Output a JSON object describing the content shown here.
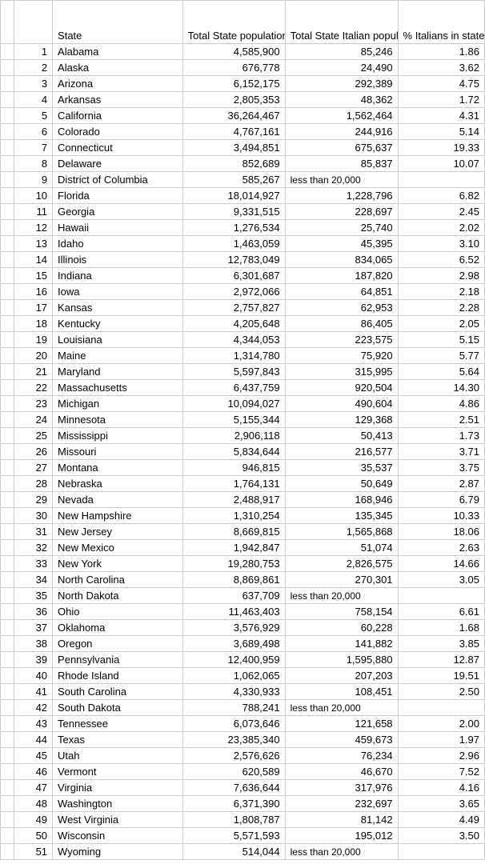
{
  "headers": {
    "state": "State",
    "total_pop": "Total State population",
    "italian_pop": "Total State Italian population",
    "pct": "% Italians in state"
  },
  "less_than_text": "less than 20,000",
  "rows": [
    {
      "n": "1",
      "state": "Alabama",
      "pop": "4,585,900",
      "ital": "85,246",
      "pct": "1.86"
    },
    {
      "n": "2",
      "state": "Alaska",
      "pop": "676,778",
      "ital": "24,490",
      "pct": "3.62"
    },
    {
      "n": "3",
      "state": "Arizona",
      "pop": "6,152,175",
      "ital": "292,389",
      "pct": "4.75"
    },
    {
      "n": "4",
      "state": "Arkansas",
      "pop": "2,805,353",
      "ital": "48,362",
      "pct": "1.72"
    },
    {
      "n": "5",
      "state": "California",
      "pop": "36,264,467",
      "ital": "1,562,464",
      "pct": "4.31"
    },
    {
      "n": "6",
      "state": "Colorado",
      "pop": "4,767,161",
      "ital": "244,916",
      "pct": "5.14"
    },
    {
      "n": "7",
      "state": "Connecticut",
      "pop": "3,494,851",
      "ital": "675,637",
      "pct": "19.33"
    },
    {
      "n": "8",
      "state": "Delaware",
      "pop": "852,689",
      "ital": "85,837",
      "pct": "10.07"
    },
    {
      "n": "9",
      "state": "District of Columbia",
      "pop": "585,267",
      "ital": "__LT__",
      "pct": ""
    },
    {
      "n": "10",
      "state": "Florida",
      "pop": "18,014,927",
      "ital": "1,228,796",
      "pct": "6.82"
    },
    {
      "n": "11",
      "state": "Georgia",
      "pop": "9,331,515",
      "ital": "228,697",
      "pct": "2.45"
    },
    {
      "n": "12",
      "state": "Hawaii",
      "pop": "1,276,534",
      "ital": "25,740",
      "pct": "2.02"
    },
    {
      "n": "13",
      "state": "Idaho",
      "pop": "1,463,059",
      "ital": "45,395",
      "pct": "3.10"
    },
    {
      "n": "14",
      "state": "Illinois",
      "pop": "12,783,049",
      "ital": "834,065",
      "pct": "6.52"
    },
    {
      "n": "15",
      "state": "Indiana",
      "pop": "6,301,687",
      "ital": "187,820",
      "pct": "2.98"
    },
    {
      "n": "16",
      "state": "Iowa",
      "pop": "2,972,066",
      "ital": "64,851",
      "pct": "2.18"
    },
    {
      "n": "17",
      "state": "Kansas",
      "pop": "2,757,827",
      "ital": "62,953",
      "pct": "2.28"
    },
    {
      "n": "18",
      "state": "Kentucky",
      "pop": "4,205,648",
      "ital": "86,405",
      "pct": "2.05"
    },
    {
      "n": "19",
      "state": "Louisiana",
      "pop": "4,344,053",
      "ital": "223,575",
      "pct": "5.15"
    },
    {
      "n": "20",
      "state": "Maine",
      "pop": "1,314,780",
      "ital": "75,920",
      "pct": "5.77"
    },
    {
      "n": "21",
      "state": "Maryland",
      "pop": "5,597,843",
      "ital": "315,995",
      "pct": "5.64"
    },
    {
      "n": "22",
      "state": "Massachusetts",
      "pop": "6,437,759",
      "ital": "920,504",
      "pct": "14.30"
    },
    {
      "n": "23",
      "state": "Michigan",
      "pop": "10,094,027",
      "ital": "490,604",
      "pct": "4.86"
    },
    {
      "n": "24",
      "state": "Minnesota",
      "pop": "5,155,344",
      "ital": "129,368",
      "pct": "2.51"
    },
    {
      "n": "25",
      "state": "Mississippi",
      "pop": "2,906,118",
      "ital": "50,413",
      "pct": "1.73"
    },
    {
      "n": "26",
      "state": "Missouri",
      "pop": "5,834,644",
      "ital": "216,577",
      "pct": "3.71"
    },
    {
      "n": "27",
      "state": "Montana",
      "pop": "946,815",
      "ital": "35,537",
      "pct": "3.75"
    },
    {
      "n": "28",
      "state": "Nebraska",
      "pop": "1,764,131",
      "ital": "50,649",
      "pct": "2.87"
    },
    {
      "n": "29",
      "state": "Nevada",
      "pop": "2,488,917",
      "ital": "168,946",
      "pct": "6.79"
    },
    {
      "n": "30",
      "state": "New Hampshire",
      "pop": "1,310,254",
      "ital": "135,345",
      "pct": "10.33"
    },
    {
      "n": "31",
      "state": "New Jersey",
      "pop": "8,669,815",
      "ital": "1,565,868",
      "pct": "18.06"
    },
    {
      "n": "32",
      "state": "New Mexico",
      "pop": "1,942,847",
      "ital": "51,074",
      "pct": "2.63"
    },
    {
      "n": "33",
      "state": "New York",
      "pop": "19,280,753",
      "ital": "2,826,575",
      "pct": "14.66"
    },
    {
      "n": "34",
      "state": "North Carolina",
      "pop": "8,869,861",
      "ital": "270,301",
      "pct": "3.05"
    },
    {
      "n": "35",
      "state": "North Dakota",
      "pop": "637,709",
      "ital": "__LT__",
      "pct": ""
    },
    {
      "n": "36",
      "state": "Ohio",
      "pop": "11,463,403",
      "ital": "758,154",
      "pct": "6.61"
    },
    {
      "n": "37",
      "state": "Oklahoma",
      "pop": "3,576,929",
      "ital": "60,228",
      "pct": "1.68"
    },
    {
      "n": "38",
      "state": "Oregon",
      "pop": "3,689,498",
      "ital": "141,882",
      "pct": "3.85"
    },
    {
      "n": "39",
      "state": "Pennsylvania",
      "pop": "12,400,959",
      "ital": "1,595,880",
      "pct": "12.87"
    },
    {
      "n": "40",
      "state": "Rhode Island",
      "pop": "1,062,065",
      "ital": "207,203",
      "pct": "19.51"
    },
    {
      "n": "41",
      "state": "South Carolina",
      "pop": "4,330,933",
      "ital": "108,451",
      "pct": "2.50"
    },
    {
      "n": "42",
      "state": "South Dakota",
      "pop": "788,241",
      "ital": "__LT__",
      "pct": ""
    },
    {
      "n": "43",
      "state": "Tennessee",
      "pop": "6,073,646",
      "ital": "121,658",
      "pct": "2.00"
    },
    {
      "n": "44",
      "state": "Texas",
      "pop": "23,385,340",
      "ital": "459,673",
      "pct": "1.97"
    },
    {
      "n": "45",
      "state": "Utah",
      "pop": "2,576,626",
      "ital": "76,234",
      "pct": "2.96"
    },
    {
      "n": "46",
      "state": "Vermont",
      "pop": "620,589",
      "ital": "46,670",
      "pct": "7.52"
    },
    {
      "n": "47",
      "state": "Virginia",
      "pop": "7,636,644",
      "ital": "317,976",
      "pct": "4.16"
    },
    {
      "n": "48",
      "state": "Washington",
      "pop": "6,371,390",
      "ital": "232,697",
      "pct": "3.65"
    },
    {
      "n": "49",
      "state": "West Virginia",
      "pop": "1,808,787",
      "ital": "81,142",
      "pct": "4.49"
    },
    {
      "n": "50",
      "state": "Wisconsin",
      "pop": "5,571,593",
      "ital": "195,012",
      "pct": "3.50"
    },
    {
      "n": "51",
      "state": "Wyoming",
      "pop": "514,044",
      "ital": "__LT__",
      "pct": ""
    }
  ]
}
